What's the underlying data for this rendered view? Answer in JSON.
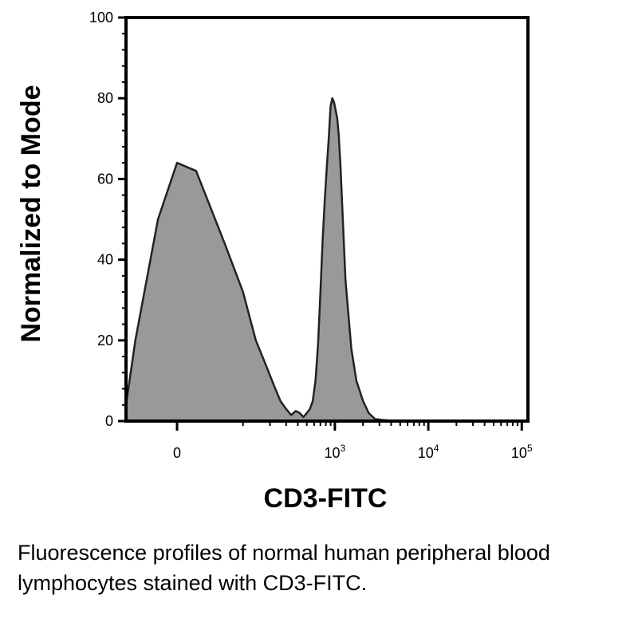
{
  "chart_data": {
    "type": "area",
    "xlabel": "CD3-FITC",
    "ylabel": "Normalized to Mode",
    "ylim": [
      0,
      100
    ],
    "y_ticks": [
      "0",
      "20",
      "40",
      "60",
      "80",
      "100"
    ],
    "x_scale": "biexponential",
    "x_ticks": [
      {
        "value": 0,
        "base": "0",
        "exp": ""
      },
      {
        "value": 1000,
        "base": "10",
        "exp": "3"
      },
      {
        "value": 10000,
        "base": "10",
        "exp": "4"
      },
      {
        "value": 100000,
        "base": "10",
        "exp": "5"
      }
    ],
    "grid": false,
    "fill_color": "#999999",
    "line_color": "#222222",
    "series": [
      {
        "x": [
          -250,
          -150,
          -100,
          -50,
          -20,
          0,
          20,
          60,
          100,
          140,
          180,
          220,
          260,
          300,
          340,
          380,
          420,
          460,
          500,
          540,
          580,
          620,
          660,
          700,
          740,
          780,
          820,
          860,
          900,
          940,
          980,
          1020,
          1060,
          1100,
          1150,
          1200,
          1300,
          1500,
          1700,
          2000,
          2300,
          2700,
          3200,
          4000,
          6000,
          10000,
          30000,
          100000,
          150000
        ],
        "y": [
          0,
          1,
          4,
          20,
          50,
          64,
          62,
          44,
          32,
          20,
          14,
          9,
          5,
          3,
          1.5,
          2.5,
          2,
          1,
          2,
          3,
          5,
          10,
          19,
          32,
          45,
          55,
          63,
          70,
          78,
          80,
          79,
          77,
          75,
          71,
          63,
          53,
          35,
          18,
          10,
          5,
          2,
          0.5,
          0.3,
          0.1,
          0,
          0,
          0,
          0,
          0
        ]
      }
    ]
  },
  "caption": "Fluorescence profiles of normal human peripheral blood lymphocytes stained with CD3-FITC."
}
